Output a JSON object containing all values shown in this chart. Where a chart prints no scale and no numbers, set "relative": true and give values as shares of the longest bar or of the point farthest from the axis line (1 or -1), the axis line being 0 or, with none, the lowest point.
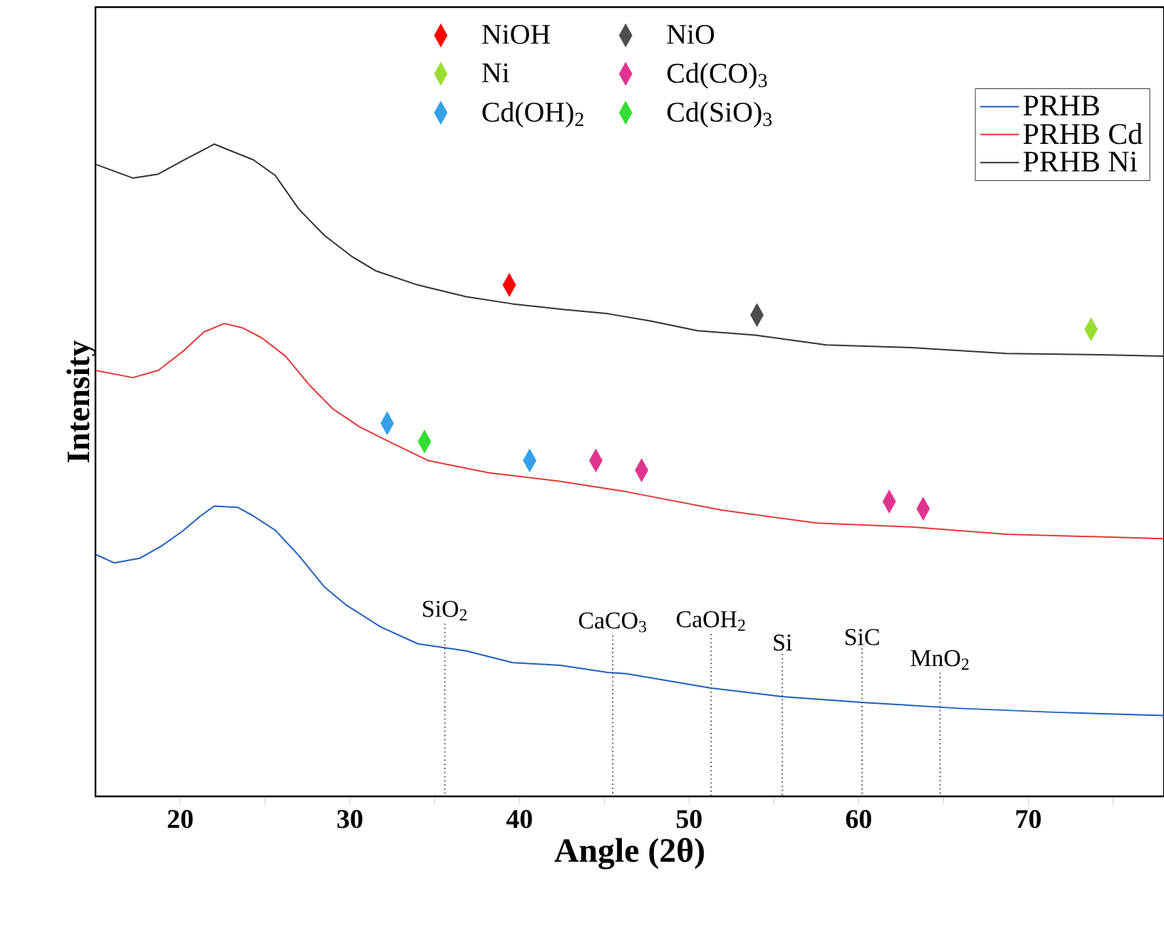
{
  "chart_data": {
    "type": "line",
    "xlabel": "Angle (2θ)",
    "ylabel": "Intensity",
    "relative": true,
    "xlim": [
      15,
      78
    ],
    "xticks": [
      20,
      {
        "value": 25,
        "label": null
      },
      30,
      {
        "value": 35,
        "label": null
      },
      40,
      {
        "value": 45,
        "label": null
      },
      50,
      {
        "value": 55,
        "label": null
      },
      60,
      {
        "value": 65,
        "label": null
      },
      70,
      {
        "value": 75,
        "label": null
      }
    ],
    "legend": "top right",
    "series": [
      {
        "name": "PRHB",
        "color": "#1f5fbf",
        "x": [
          15.0,
          16.1,
          17.6,
          18.9,
          20.1,
          21.2,
          22.0,
          23.4,
          24.3,
          25.6,
          27.0,
          28.5,
          29.8,
          31.8,
          34.0,
          36.85,
          39.6,
          42.4,
          45.2,
          46.3,
          51.3,
          55.5,
          60.3,
          65.9,
          71.5,
          78.0
        ],
        "values": [
          0.371,
          0.358,
          0.365,
          0.384,
          0.406,
          0.43,
          0.445,
          0.443,
          0.43,
          0.408,
          0.369,
          0.321,
          0.293,
          0.26,
          0.234,
          0.223,
          0.205,
          0.201,
          0.19,
          0.188,
          0.166,
          0.153,
          0.144,
          0.135,
          0.129,
          0.124
        ]
      },
      {
        "name": "PRHB Cd",
        "color": "#e03a3a",
        "x": [
          15.0,
          17.2,
          18.7,
          20.1,
          21.4,
          22.6,
          23.7,
          24.8,
          26.2,
          27.6,
          29.0,
          30.6,
          32.3,
          34.6,
          38.2,
          42.4,
          46.3,
          51.9,
          57.5,
          63.1,
          68.7,
          78.0
        ],
        "values": [
          0.653,
          0.642,
          0.653,
          0.681,
          0.712,
          0.725,
          0.718,
          0.703,
          0.675,
          0.631,
          0.594,
          0.566,
          0.544,
          0.515,
          0.496,
          0.483,
          0.467,
          0.439,
          0.419,
          0.413,
          0.402,
          0.395
        ]
      },
      {
        "name": "PRHB Ni",
        "color": "#333333",
        "x": [
          15.0,
          17.2,
          18.7,
          20.1,
          22.0,
          22.85,
          24.3,
          25.6,
          27.0,
          28.5,
          30.1,
          31.5,
          34.0,
          36.85,
          39.6,
          42.4,
          45.2,
          47.7,
          50.5,
          53.9,
          58.1,
          63.1,
          68.7,
          74.2,
          78.0
        ],
        "values": [
          0.969,
          0.948,
          0.954,
          0.974,
          1.0,
          0.991,
          0.976,
          0.952,
          0.9,
          0.86,
          0.828,
          0.806,
          0.784,
          0.766,
          0.755,
          0.747,
          0.74,
          0.729,
          0.714,
          0.707,
          0.692,
          0.688,
          0.679,
          0.677,
          0.675
        ]
      },
      {
        "type": "scatter",
        "marker": "diamond",
        "name": "NiOH",
        "color": "#ff0000",
        "x": [
          39.4
        ],
        "values": [
          0.784
        ]
      },
      {
        "type": "scatter",
        "marker": "diamond",
        "name": "NiO",
        "color": "#4d4d4d",
        "x": [
          54.0
        ],
        "values": [
          0.738
        ]
      },
      {
        "type": "scatter",
        "marker": "diamond",
        "name": "Ni",
        "color": "#99dd33",
        "x": [
          73.7
        ],
        "values": [
          0.716
        ]
      },
      {
        "type": "scatter",
        "marker": "diamond",
        "name": "Cd(CO)$_{3}$",
        "color": "#e0338f",
        "x": [
          44.5,
          47.2,
          61.8,
          63.8
        ],
        "values": [
          0.515,
          0.5,
          0.452,
          0.441
        ]
      },
      {
        "type": "scatter",
        "marker": "diamond",
        "name": "Cd(OH)$_{2}$",
        "color": "#33a0e8",
        "x": [
          32.2,
          40.6
        ],
        "values": [
          0.572,
          0.515
        ]
      },
      {
        "type": "scatter",
        "marker": "diamond",
        "name": "Cd(SiO)$_{3}$",
        "color": "#33dd33",
        "x": [
          34.4
        ],
        "values": [
          0.544
        ]
      }
    ],
    "annotations": [
      {
        "text": "SiO$_{2}$",
        "x": 35.6,
        "y": 0.23
      },
      {
        "text": "CaCO$_{3}$",
        "x": 45.5,
        "y": 0.19
      },
      {
        "text": "CaOH$_{2}$",
        "x": 51.3,
        "y": 0.166
      },
      {
        "text": "Si",
        "x": 55.5,
        "y": 0.153
      },
      {
        "text": "SiC",
        "x": 60.2,
        "y": 0.144
      },
      {
        "text": "MnO$_{2}$",
        "x": 64.8,
        "y": 0.137
      }
    ]
  }
}
